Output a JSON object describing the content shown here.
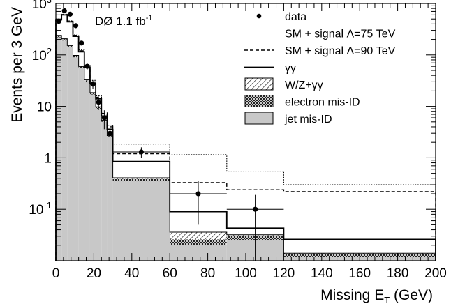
{
  "chart_data": {
    "type": "step-histogram",
    "experiment_label": "DØ 1.1 fb",
    "experiment_label_sup": "-1",
    "xlabel_main": "Missing E",
    "xlabel_sub": "T",
    "xlabel_unit": " (GeV)",
    "ylabel": "Events per 3 GeV",
    "x_range": [
      0,
      200
    ],
    "y_range": [
      0.01,
      1000
    ],
    "y_scale": "log",
    "x_ticks": [
      0,
      20,
      40,
      60,
      80,
      100,
      120,
      140,
      160,
      180,
      200
    ],
    "y_tick_labels": [
      {
        "value": 1000,
        "base": "10",
        "sup": "3"
      },
      {
        "value": 100,
        "base": "10",
        "sup": "2"
      },
      {
        "value": 10,
        "base": "10",
        "sup": ""
      },
      {
        "value": 1,
        "base": "1",
        "sup": ""
      },
      {
        "value": 0.1,
        "base": "10",
        "sup": "-1"
      }
    ],
    "bin_edges": [
      0,
      3,
      6,
      9,
      12,
      15,
      18,
      21,
      24,
      27,
      30,
      60,
      90,
      120,
      200
    ],
    "stack": {
      "jet_misid": [
        220,
        190,
        140,
        90,
        55,
        30,
        17,
        9,
        5,
        2.5,
        0.35,
        0.02,
        0.025,
        0.012
      ],
      "electron_misid": [
        15,
        12,
        9,
        6,
        3.5,
        2,
        1.1,
        0.6,
        0.3,
        0.15,
        0.04,
        0.006,
        0.005,
        0.0015
      ],
      "wz_gg": [
        5,
        4,
        3,
        2,
        1.2,
        0.7,
        0.4,
        0.2,
        0.1,
        0.05,
        0.02,
        0.01,
        0.002,
        0.0005
      ]
    },
    "gamma_gamma": [
      480,
      600,
      440,
      230,
      115,
      57,
      28,
      14,
      6.5,
      3.6,
      0.85,
      0.09,
      0.043,
      0.026
    ],
    "sm_signal_90": [
      490,
      610,
      450,
      240,
      120,
      62,
      30,
      15,
      7.3,
      4.0,
      1.2,
      0.33,
      0.24,
      0.22
    ],
    "sm_signal_75": [
      500,
      620,
      460,
      245,
      125,
      65,
      32,
      16,
      7.8,
      4.3,
      1.85,
      1.15,
      0.55,
      0.3
    ],
    "data_points": [
      {
        "x": 1.5,
        "y": 450,
        "ey": 22
      },
      {
        "x": 4.5,
        "y": 720,
        "ey": 27
      },
      {
        "x": 7.5,
        "y": 620,
        "ey": 25
      },
      {
        "x": 10.5,
        "y": 370,
        "ey": 19
      },
      {
        "x": 13.5,
        "y": 170,
        "ey": 13
      },
      {
        "x": 16.5,
        "y": 60,
        "ey": 8
      },
      {
        "x": 19.5,
        "y": 27,
        "ey": 5.2
      },
      {
        "x": 22.5,
        "y": 12,
        "ey": 3.5
      },
      {
        "x": 25.5,
        "y": 6,
        "ey": 2.4
      },
      {
        "x": 28.5,
        "y": 3,
        "ey": 1.7
      },
      {
        "x": 45,
        "y": 1.3,
        "ex": 15,
        "ey": 0.3
      },
      {
        "x": 75,
        "y": 0.2,
        "ex": 15,
        "ey": 0.15
      },
      {
        "x": 105,
        "y": 0.1,
        "ex": 15,
        "ey": 0.09
      }
    ],
    "legend": [
      {
        "key": "data",
        "label": "data",
        "style": "marker"
      },
      {
        "key": "sm_signal_75",
        "label": "SM + signal Λ=75 TeV",
        "style": "dotted"
      },
      {
        "key": "sm_signal_90",
        "label": "SM + signal Λ=90 TeV",
        "style": "dashed"
      },
      {
        "key": "gamma_gamma",
        "label": "γγ",
        "style": "solid"
      },
      {
        "key": "wz_gg",
        "label": "W/Z+γγ",
        "style": "hatch"
      },
      {
        "key": "electron_misid",
        "label": "electron mis-ID",
        "style": "crosshatch"
      },
      {
        "key": "jet_misid",
        "label": "jet mis-ID",
        "style": "fill"
      }
    ],
    "colors": {
      "jet_fill": "#c8c8c8",
      "line": "#000000"
    },
    "legend_position": "top-right"
  }
}
